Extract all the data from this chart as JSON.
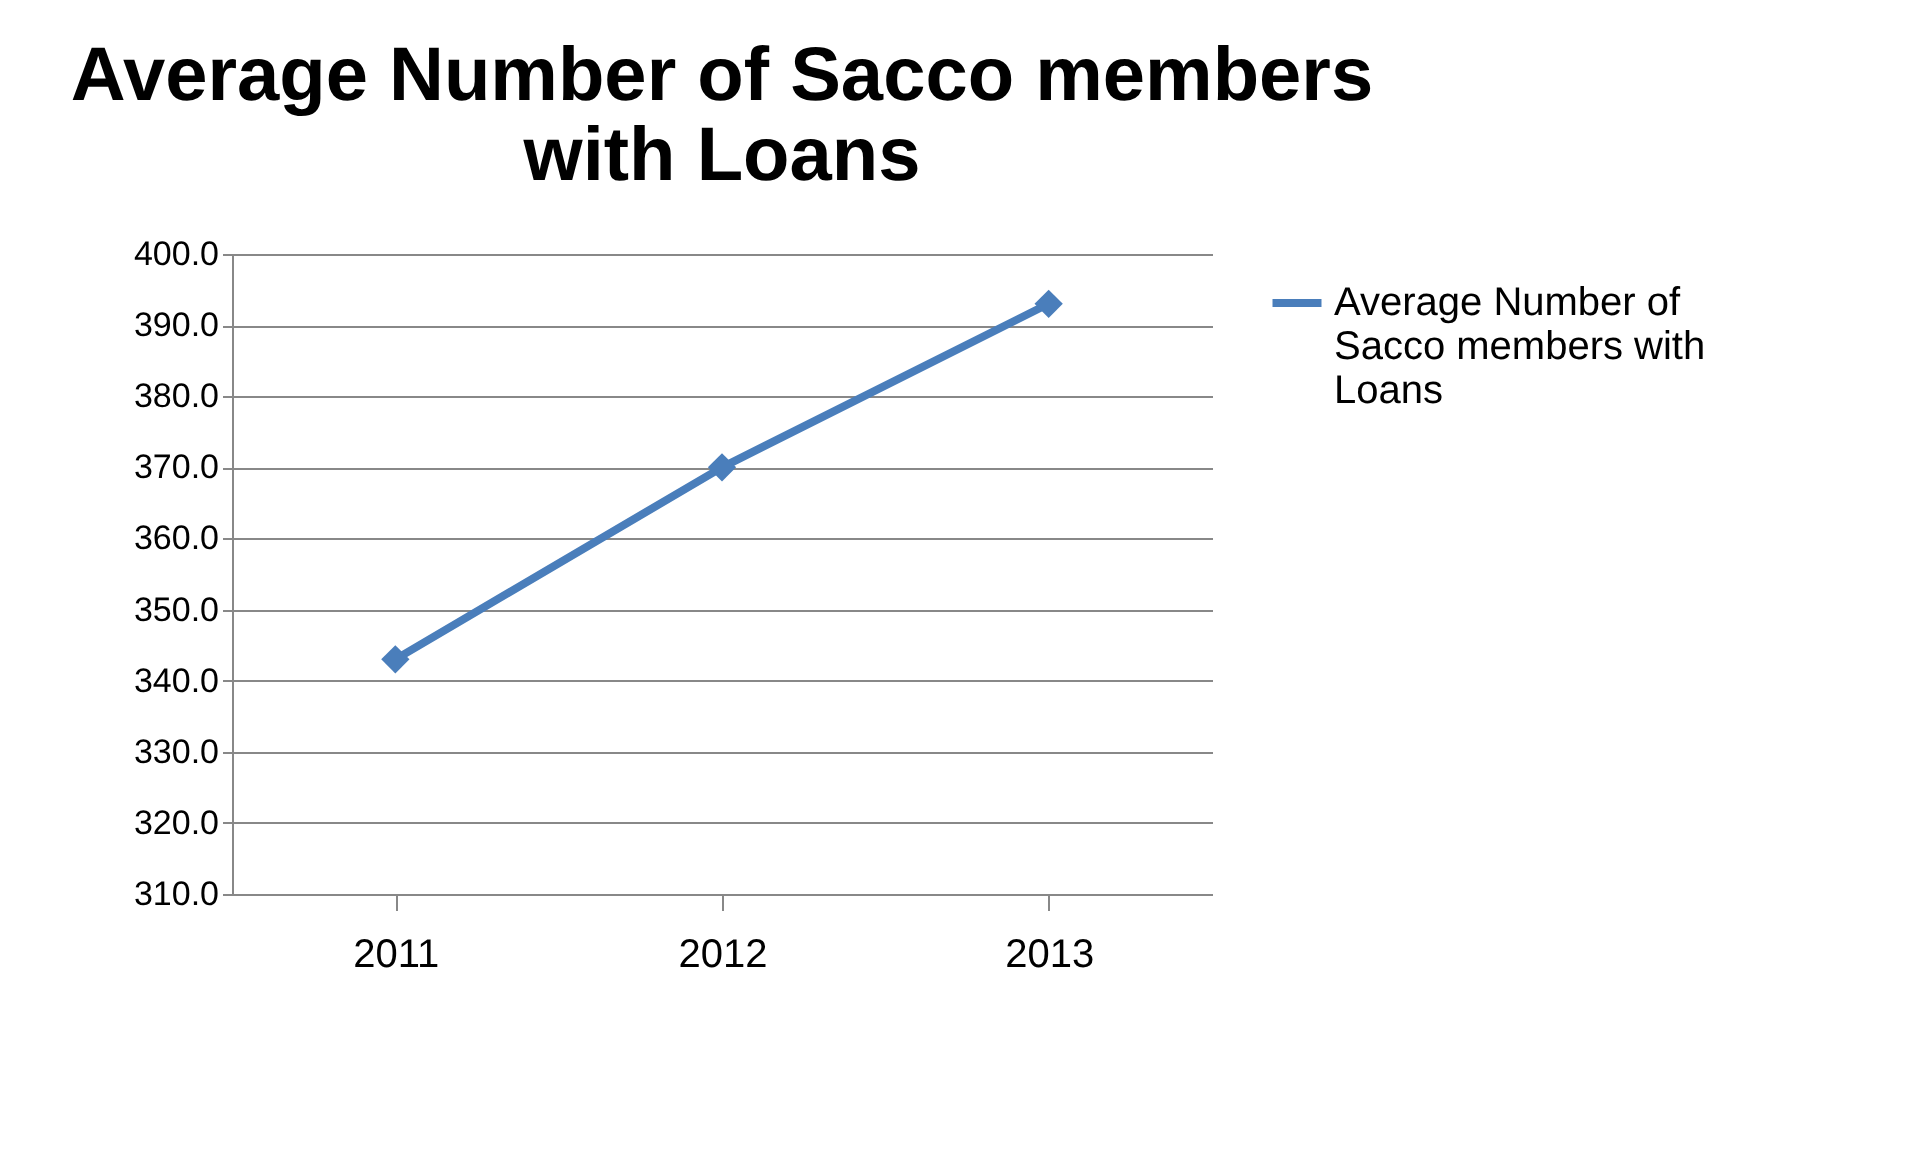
{
  "chart_data": {
    "type": "line",
    "title": "Average Number of Sacco  members with Loans",
    "categories": [
      "2011",
      "2012",
      "2013"
    ],
    "series": [
      {
        "name": "Average Number of Sacco  members with Loans",
        "color": "#4a7ebb",
        "values": [
          343,
          370,
          393
        ]
      }
    ],
    "ylim": [
      310,
      400
    ],
    "yticks": [
      {
        "value": 310,
        "label": "310.0"
      },
      {
        "value": 320,
        "label": "320.0"
      },
      {
        "value": 330,
        "label": "330.0"
      },
      {
        "value": 340,
        "label": "340.0"
      },
      {
        "value": 350,
        "label": "350.0"
      },
      {
        "value": 360,
        "label": "360.0"
      },
      {
        "value": 370,
        "label": "370.0"
      },
      {
        "value": 380,
        "label": "380.0"
      },
      {
        "value": 390,
        "label": "390.0"
      },
      {
        "value": 400,
        "label": "400.0"
      }
    ],
    "grid": "y",
    "legend": "right",
    "marker": "diamond",
    "line_style": "solid"
  }
}
